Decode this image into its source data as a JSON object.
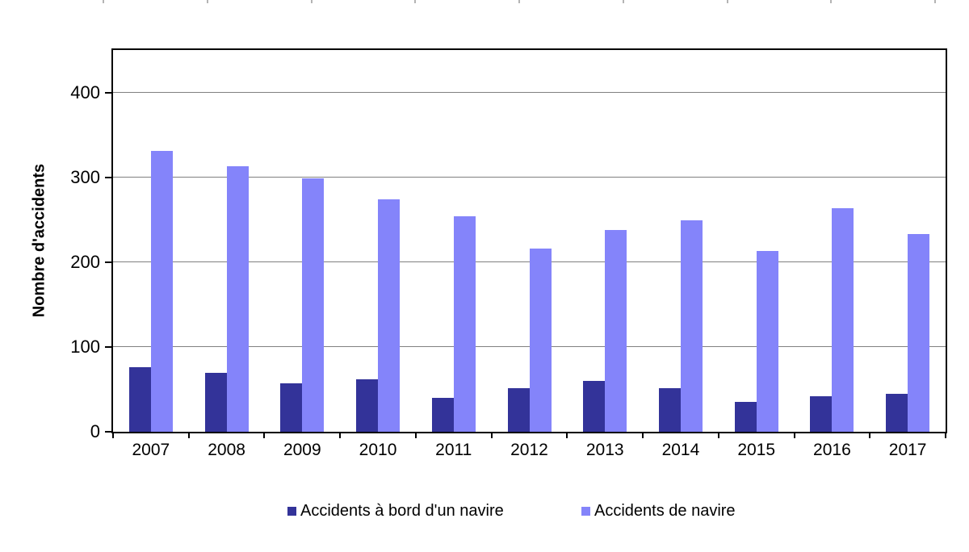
{
  "chart_data": {
    "type": "bar",
    "title": "",
    "categories": [
      "2007",
      "2008",
      "2009",
      "2010",
      "2011",
      "2012",
      "2013",
      "2014",
      "2015",
      "2016",
      "2017"
    ],
    "series": [
      {
        "name": "Accidents à bord d'un navire",
        "color": "#333399",
        "values": [
          76,
          69,
          57,
          62,
          40,
          51,
          60,
          51,
          35,
          42,
          45
        ]
      },
      {
        "name": "Accidents de navire",
        "color": "#8484FA",
        "values": [
          331,
          313,
          299,
          274,
          254,
          216,
          238,
          249,
          213,
          264,
          233
        ]
      }
    ],
    "xlabel": "",
    "ylabel": "Nombre d'accidents",
    "ylim": [
      0,
      450
    ],
    "yticks": [
      0,
      100,
      200,
      300,
      400
    ],
    "grid": true,
    "gridline_color": "#808080",
    "axis_color": "#000000",
    "legend_position": "bottom"
  }
}
